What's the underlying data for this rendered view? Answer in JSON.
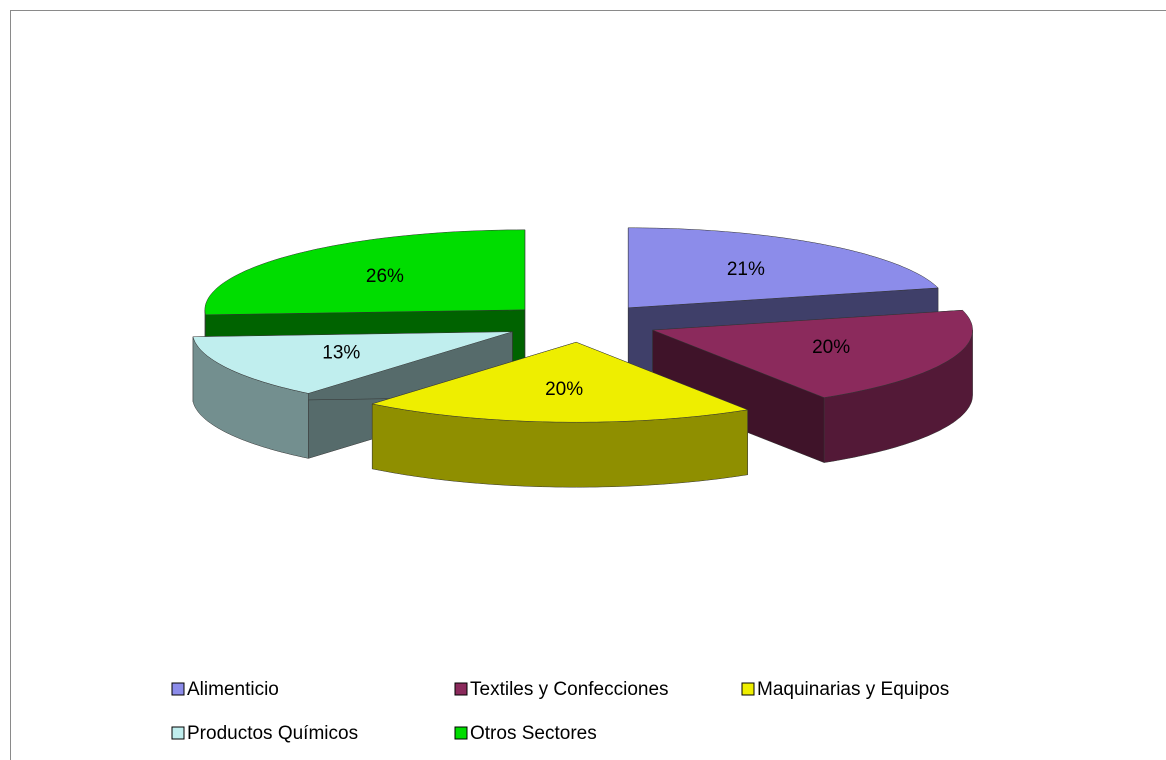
{
  "chart_data": {
    "type": "pie",
    "categories": [
      "Alimenticio",
      "Textiles y Confecciones",
      "Maquinarias y Equipos",
      "Productos Químicos",
      "Otros Sectores"
    ],
    "values": [
      21,
      20,
      20,
      13,
      26
    ],
    "value_labels": [
      "21%",
      "20%",
      "20%",
      "13%",
      "26%"
    ],
    "colors": [
      "#8c8cea",
      "#8b2a5c",
      "#eeee00",
      "#c0eeee",
      "#00dd00"
    ]
  }
}
